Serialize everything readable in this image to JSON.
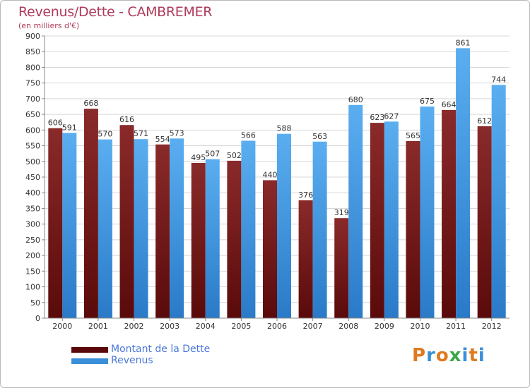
{
  "header": {
    "title": "Revenus/Dette - CAMBREMER",
    "subtitle": "(en milliers d'€)"
  },
  "legend": {
    "items": [
      {
        "label": "Montant de la Dette",
        "color": "#7a1a1a"
      },
      {
        "label": "Revenus",
        "color": "#3a8fd8"
      }
    ]
  },
  "logo": {
    "letters": [
      "P",
      "r",
      "o",
      "x",
      "i",
      "t",
      "i"
    ],
    "colors": [
      "#e07a20",
      "#3a8fd8",
      "#e07a20",
      "#3aa84a",
      "#3a8fd8",
      "#e07a20",
      "#3a8fd8"
    ]
  },
  "chart_data": {
    "type": "bar",
    "title": "Revenus/Dette - CAMBREMER",
    "ylabel": "(en milliers d'€)",
    "xlabel": "",
    "ylim": [
      0,
      900
    ],
    "ytick_step": 50,
    "grid": true,
    "categories": [
      "2000",
      "2001",
      "2002",
      "2003",
      "2004",
      "2005",
      "2006",
      "2007",
      "2008",
      "2009",
      "2010",
      "2011",
      "2012"
    ],
    "series": [
      {
        "name": "Montant de la Dette",
        "color_top": "#8a2a2a",
        "color_bottom": "#5a0a0a",
        "values": [
          606,
          668,
          616,
          554,
          495,
          502,
          440,
          376,
          319,
          623,
          565,
          664,
          612
        ]
      },
      {
        "name": "Revenus",
        "color_top": "#5aaef0",
        "color_bottom": "#2a7ac8",
        "values": [
          591,
          570,
          571,
          573,
          507,
          566,
          588,
          563,
          680,
          627,
          675,
          861,
          744
        ]
      }
    ]
  }
}
